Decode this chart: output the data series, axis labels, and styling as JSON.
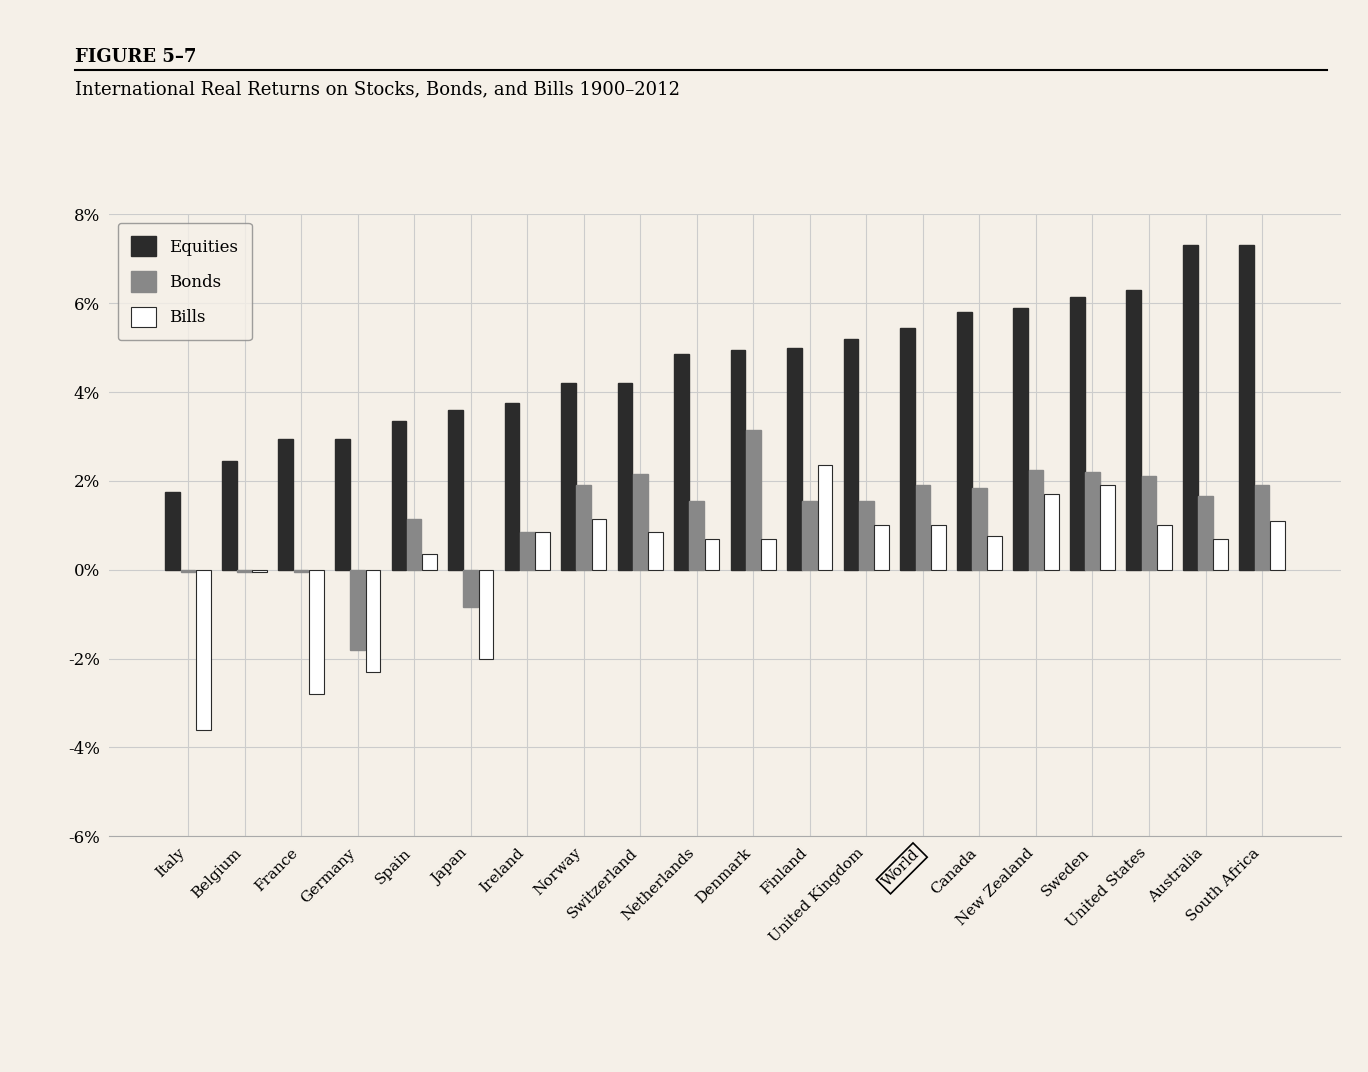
{
  "figure_label": "FIGURE 5–7",
  "title": "International Real Returns on Stocks, Bonds, and Bills 1900–2012",
  "categories": [
    "Italy",
    "Belgium",
    "France",
    "Germany",
    "Spain",
    "Japan",
    "Ireland",
    "Norway",
    "Switzerland",
    "Netherlands",
    "Denmark",
    "Finland",
    "United Kingdom",
    "World",
    "Canada",
    "New Zealand",
    "Sweden",
    "United States",
    "Australia",
    "South Africa"
  ],
  "equities": [
    1.75,
    2.45,
    2.95,
    2.95,
    3.35,
    3.6,
    3.75,
    4.2,
    4.2,
    4.85,
    4.95,
    5.0,
    5.2,
    5.45,
    5.8,
    5.9,
    6.15,
    6.3,
    7.3,
    7.3
  ],
  "bonds": [
    -0.05,
    -0.05,
    -0.05,
    -1.8,
    1.15,
    -0.85,
    0.85,
    1.9,
    2.15,
    1.55,
    3.15,
    1.55,
    1.55,
    1.9,
    1.85,
    2.25,
    2.2,
    2.1,
    1.65,
    1.9
  ],
  "bills": [
    -3.6,
    -0.05,
    -2.8,
    -2.3,
    0.35,
    -2.0,
    0.85,
    1.15,
    0.85,
    0.7,
    0.7,
    2.35,
    1.0,
    1.0,
    0.75,
    1.7,
    1.9,
    1.0,
    0.7,
    1.1
  ],
  "equities_color": "#2b2b2b",
  "bonds_color": "#888888",
  "bills_color": "#ffffff",
  "bills_edgecolor": "#2b2b2b",
  "ylim": [
    -6,
    8
  ],
  "yticks": [
    -6,
    -4,
    -2,
    0,
    2,
    4,
    6,
    8
  ],
  "ytick_labels": [
    "-6%",
    "-4%",
    "-2%",
    "0%",
    "2%",
    "4%",
    "6%",
    "8%"
  ],
  "background_color": "#f5f0e8",
  "grid_color": "#cccccc",
  "world_index": 13
}
